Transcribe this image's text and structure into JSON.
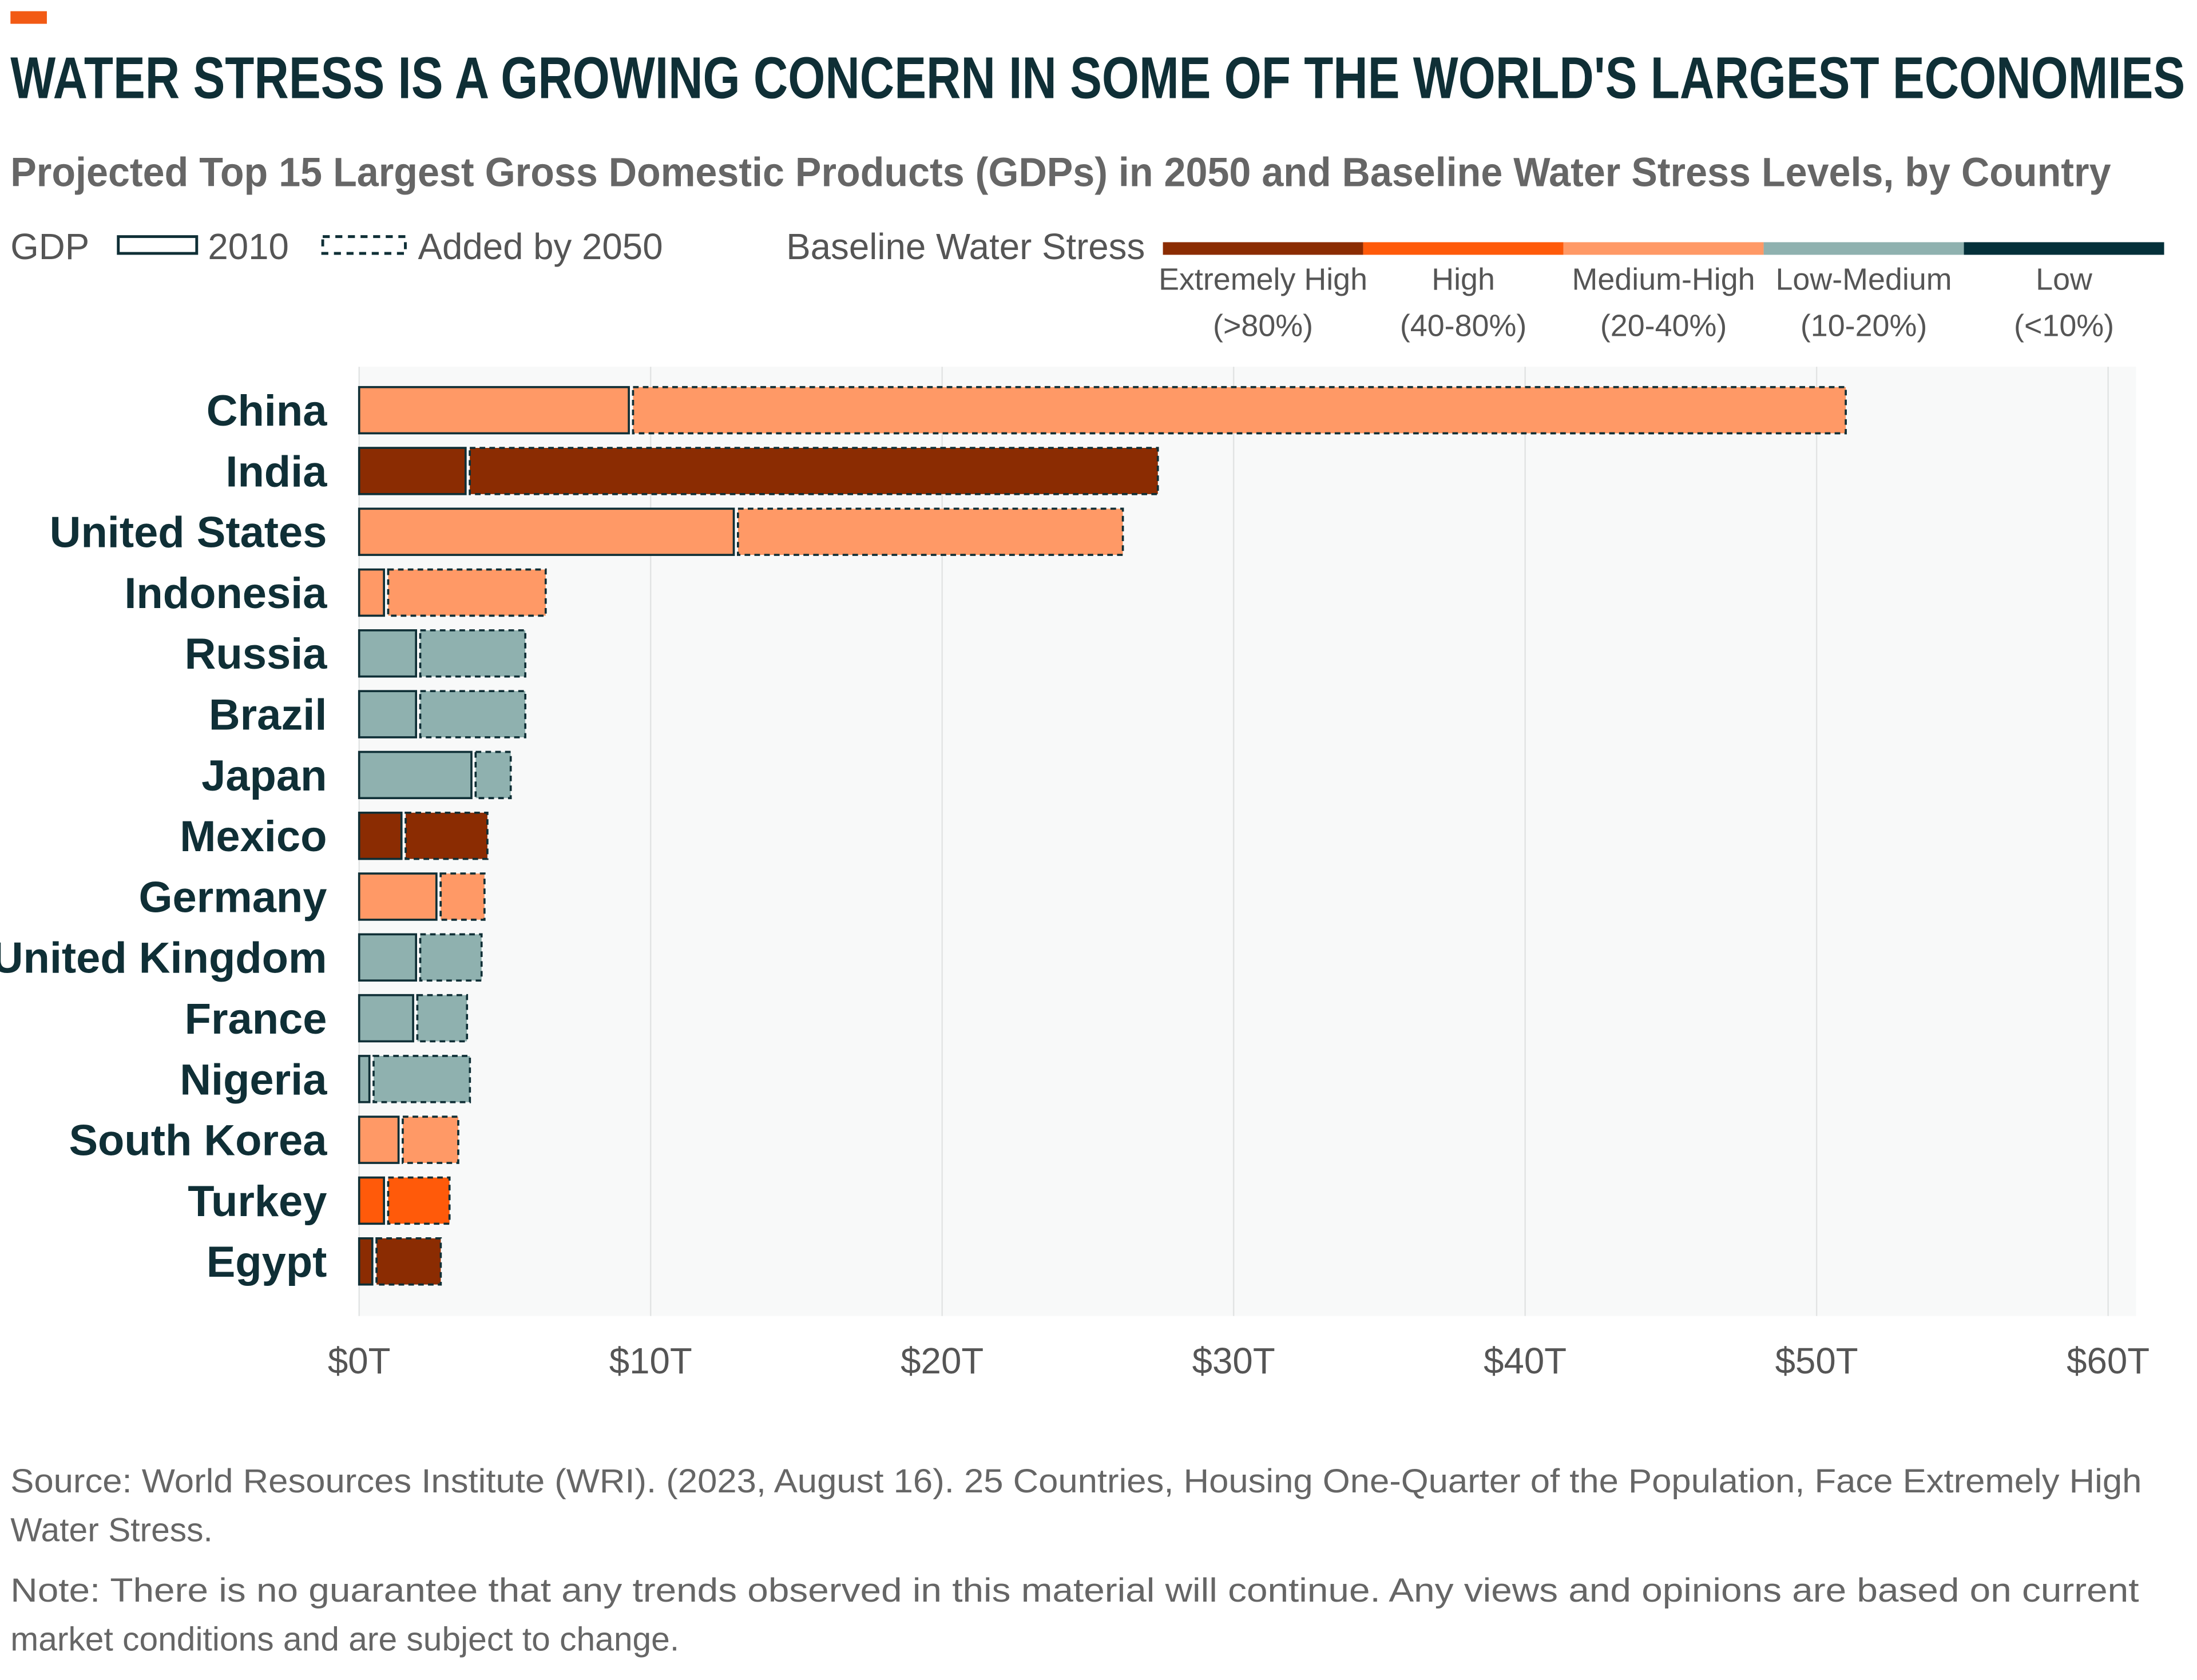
{
  "title": "WATER STRESS IS A GROWING CONCERN IN SOME OF THE WORLD'S LARGEST ECONOMIES",
  "subtitle": "Projected Top 15 Largest Gross Domestic Products (GDPs) in 2050 and Baseline Water Stress Levels, by Country",
  "legend": {
    "gdp_label": "GDP",
    "solid_label": "2010",
    "dashed_label": "Added by 2050",
    "stress_label": "Baseline Water Stress",
    "levels": [
      {
        "name": "Extremely High",
        "range": "(>80%)",
        "color": "#8b2c02"
      },
      {
        "name": "High",
        "range": "(40-80%)",
        "color": "#ff5a0a"
      },
      {
        "name": "Medium-High",
        "range": "(20-40%)",
        "color": "#ff9966"
      },
      {
        "name": "Low-Medium",
        "range": "(10-20%)",
        "color": "#8fb1af"
      },
      {
        "name": "Low",
        "range": "(<10%)",
        "color": "#04303a"
      }
    ]
  },
  "chart_data": {
    "type": "bar",
    "orientation": "horizontal",
    "stacked": true,
    "categories": [
      "China",
      "India",
      "United States",
      "Indonesia",
      "Russia",
      "Brazil",
      "Japan",
      "Mexico",
      "Germany",
      "United Kingdom",
      "France",
      "Nigeria",
      "South Korea",
      "Turkey",
      "Egypt"
    ],
    "series": [
      {
        "name": "2010",
        "values": [
          9.3,
          3.7,
          12.9,
          0.9,
          2.0,
          2.0,
          3.9,
          1.5,
          2.7,
          2.0,
          1.9,
          0.4,
          1.4,
          0.9,
          0.5
        ]
      },
      {
        "name": "Added by 2050",
        "values": [
          41.7,
          23.7,
          13.3,
          5.5,
          3.7,
          3.7,
          1.3,
          2.9,
          1.6,
          2.2,
          1.8,
          3.4,
          2.0,
          2.2,
          2.3
        ]
      }
    ],
    "stress_level": [
      "Medium-High",
      "Extremely High",
      "Medium-High",
      "Medium-High",
      "Low-Medium",
      "Low-Medium",
      "Low-Medium",
      "Extremely High",
      "Medium-High",
      "Low-Medium",
      "Low-Medium",
      "Low-Medium",
      "Medium-High",
      "High",
      "Extremely High"
    ],
    "xlim": [
      0,
      60
    ],
    "xticks": [
      0,
      10,
      20,
      30,
      40,
      50,
      60
    ],
    "xtick_labels": [
      "$0T",
      "$10T",
      "$20T",
      "$30T",
      "$40T",
      "$50T",
      "$60T"
    ],
    "grid": "vertical",
    "unit": "trillion USD"
  },
  "accent_color": "#f25a14",
  "footer": {
    "source_line1": "Source: World Resources Institute (WRI). (2023, August 16). 25 Countries, Housing One-Quarter of the Population, Face Extremely High",
    "source_line2": "Water Stress.",
    "note_line1": "Note: There is no guarantee that any trends observed in this material will continue. Any views and opinions are based on current",
    "note_line2": "market conditions and are subject to change."
  }
}
